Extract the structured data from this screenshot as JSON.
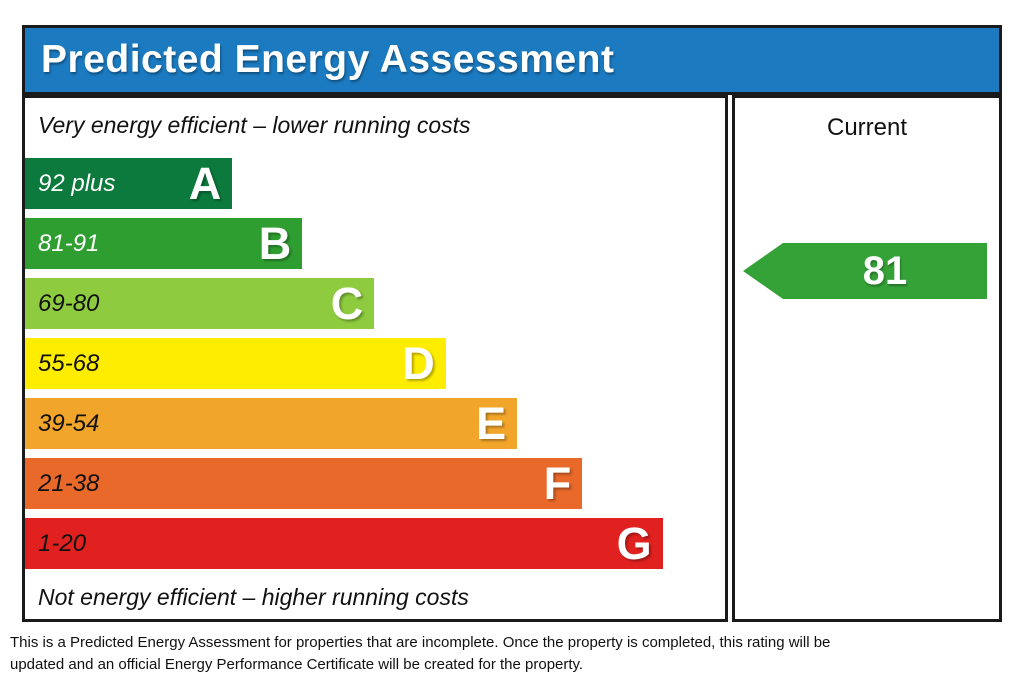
{
  "header": {
    "title": "Predicted Energy Assessment",
    "bg_color": "#1b7ac0"
  },
  "panel": {
    "top_caption": "Very energy efficient – lower running costs",
    "bottom_caption": "Not energy efficient – higher running costs"
  },
  "bands": [
    {
      "letter": "A",
      "range": "92 plus",
      "color": "#0c7a3c",
      "text_color": "#ffffff",
      "width_pct": 29.6
    },
    {
      "letter": "B",
      "range": "81-91",
      "color": "#2f9e31",
      "text_color": "#ffffff",
      "width_pct": 39.6
    },
    {
      "letter": "C",
      "range": "69-80",
      "color": "#8ecb3e",
      "text_color": "#111111",
      "width_pct": 49.9
    },
    {
      "letter": "D",
      "range": "55-68",
      "color": "#ffed00",
      "text_color": "#111111",
      "width_pct": 60.1
    },
    {
      "letter": "E",
      "range": "39-54",
      "color": "#f2a52b",
      "text_color": "#111111",
      "width_pct": 70.3
    },
    {
      "letter": "F",
      "range": "21-38",
      "color": "#e8692a",
      "text_color": "#111111",
      "width_pct": 79.6
    },
    {
      "letter": "G",
      "range": "1-20",
      "color": "#e0211f",
      "text_color": "#111111",
      "width_pct": 91.1
    }
  ],
  "current": {
    "header": "Current",
    "value": "81",
    "band": "B",
    "color": "#35a238"
  },
  "footer": {
    "text": "This is a Predicted Energy Assessment for properties that are incomplete. Once the property is completed, this rating will be updated and an official Energy Performance Certificate will be created for the property."
  },
  "chart_data": {
    "type": "bar",
    "title": "Predicted Energy Assessment",
    "categories": [
      "A",
      "B",
      "C",
      "D",
      "E",
      "F",
      "G"
    ],
    "band_ranges": [
      "92 plus",
      "81-91",
      "69-80",
      "55-68",
      "39-54",
      "21-38",
      "1-20"
    ],
    "bar_width_percent": [
      29.6,
      39.6,
      49.9,
      60.1,
      70.3,
      79.6,
      91.1
    ],
    "band_colors": [
      "#0c7a3c",
      "#2f9e31",
      "#8ecb3e",
      "#ffed00",
      "#f2a52b",
      "#e8692a",
      "#e0211f"
    ],
    "current_rating": 81,
    "current_band": "B",
    "top_annotation": "Very energy efficient – lower running costs",
    "bottom_annotation": "Not energy efficient – higher running costs",
    "column_header": "Current",
    "legend_position": "none",
    "grid": false
  }
}
